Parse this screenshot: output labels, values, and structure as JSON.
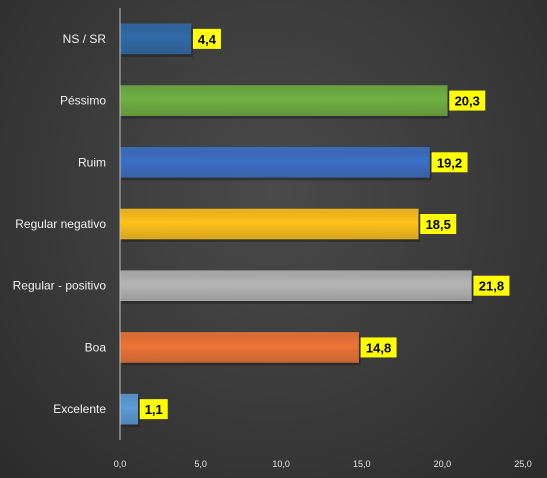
{
  "chart_data": {
    "type": "bar",
    "orientation": "horizontal",
    "title": "",
    "xlabel": "",
    "ylabel": "",
    "categories": [
      "NS / SR",
      "Péssimo",
      "Ruim",
      "Regular  negativo",
      "Regular - positivo",
      "Boa",
      "Excelente"
    ],
    "values": [
      4.4,
      20.3,
      19.2,
      18.5,
      21.8,
      14.8,
      1.1
    ],
    "value_labels": [
      "4,4",
      "20,3",
      "19,2",
      "18,5",
      "21,8",
      "14,8",
      "1,1"
    ],
    "colors": [
      "#2f6aa8",
      "#6fb042",
      "#3c6fc6",
      "#ffc21a",
      "#b5b5b5",
      "#ee7335",
      "#5c9bd8"
    ],
    "xlim": [
      0,
      25
    ],
    "xticks": [
      0,
      5,
      10,
      15,
      20,
      25
    ],
    "xtick_labels": [
      "0,0",
      "5,0",
      "10,0",
      "15,0",
      "20,0",
      "25,0"
    ],
    "data_label_background": "#ffff00",
    "grid": false,
    "legend": "none"
  }
}
